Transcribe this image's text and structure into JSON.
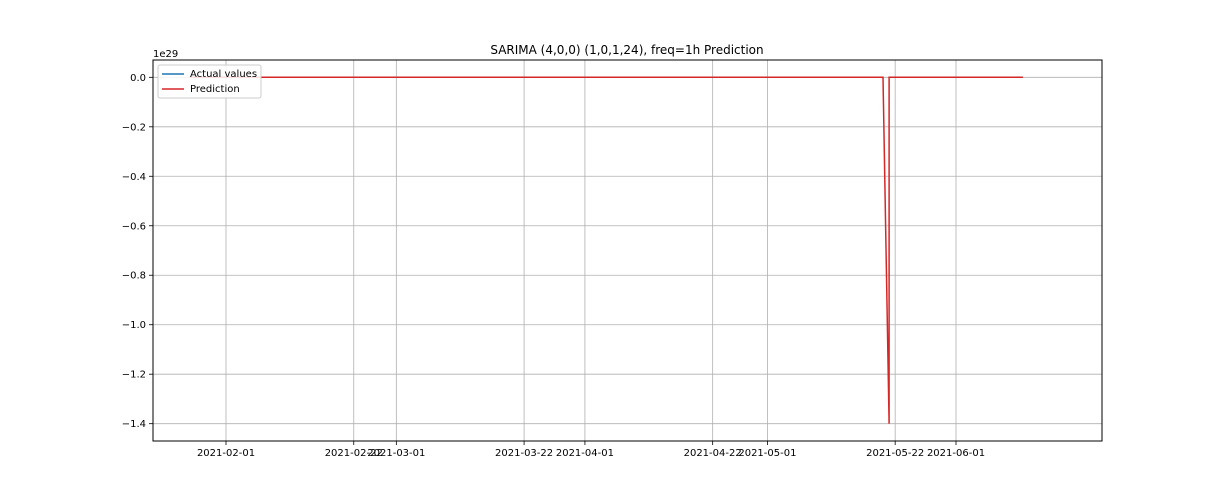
{
  "chart_data": {
    "type": "line",
    "title": "SARIMA (4,0,0) (1,0,1,24), freq=1h Prediction",
    "xlabel": "",
    "ylabel": "",
    "y_multiplier_label": "1e29",
    "xlim": [
      "2021-01-20",
      "2021-06-25"
    ],
    "ylim": [
      -1.47,
      0.07
    ],
    "grid": true,
    "legend_position": "upper-left",
    "x_ticks": [
      "2021-02-01",
      "2021-02-22",
      "2021-03-01",
      "2021-03-22",
      "2021-04-01",
      "2021-04-22",
      "2021-05-01",
      "2021-05-22",
      "2021-06-01"
    ],
    "y_ticks": [
      0.0,
      -0.2,
      -0.4,
      -0.6,
      -0.8,
      -1.0,
      -1.2,
      -1.4
    ],
    "y_tick_labels": [
      "0.0",
      "−0.2",
      "−0.4",
      "−0.6",
      "−0.8",
      "−1.0",
      "−1.2",
      "−1.4"
    ],
    "series": [
      {
        "name": "Actual values",
        "color": "#1f77b4",
        "points": [
          [
            "2021-01-26",
            0.0
          ],
          [
            "2021-02-10",
            0.0
          ]
        ]
      },
      {
        "name": "Prediction",
        "color": "#d62728",
        "points": [
          [
            "2021-01-26",
            0.0
          ],
          [
            "2021-05-20",
            0.0
          ],
          [
            "2021-05-21",
            -1.4
          ],
          [
            "2021-05-21",
            0.0
          ],
          [
            "2021-06-12",
            0.0
          ]
        ]
      }
    ]
  }
}
